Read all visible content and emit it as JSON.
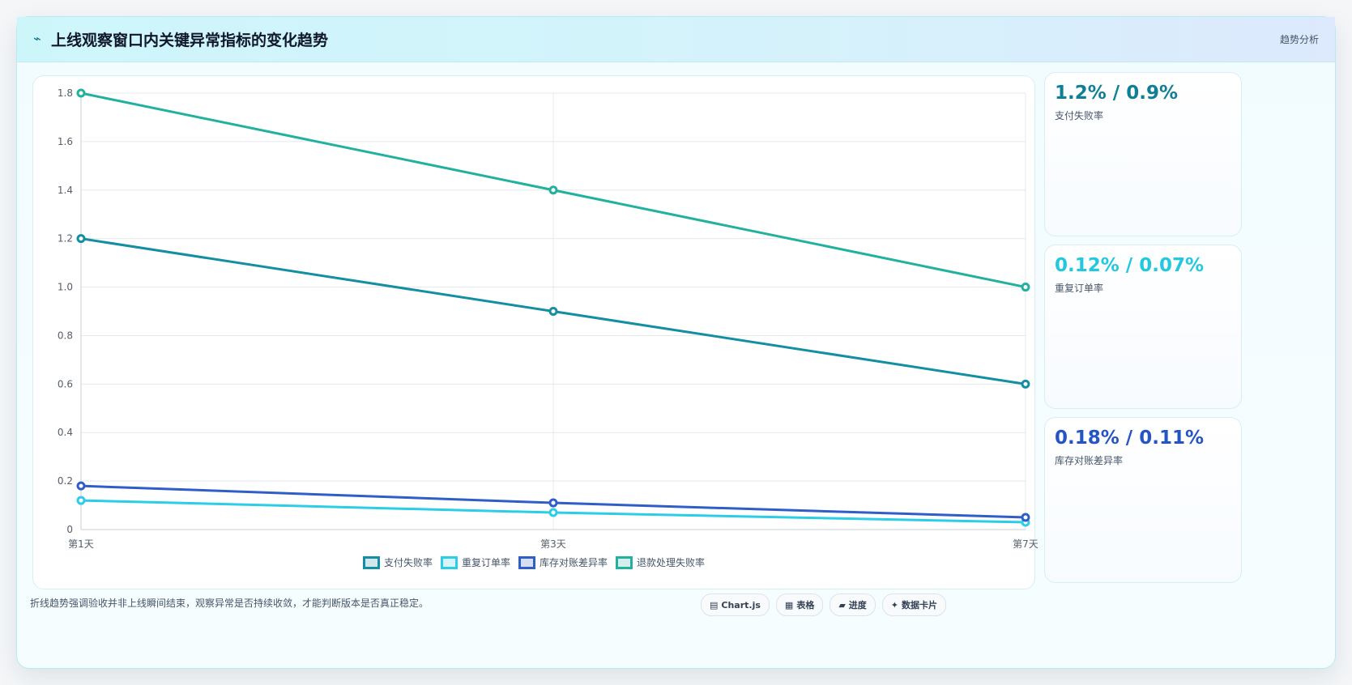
{
  "header": {
    "icon": "pulse-icon",
    "title": "上线观察窗口内关键异常指标的变化趋势",
    "tag": "趋势分析"
  },
  "chart_data": {
    "type": "line",
    "categories": [
      "第1天",
      "第3天",
      "第7天"
    ],
    "series": [
      {
        "name": "支付失败率",
        "values": [
          1.2,
          0.9,
          0.6
        ],
        "color": "#148ea3"
      },
      {
        "name": "重复订单率",
        "values": [
          0.12,
          0.07,
          0.03
        ],
        "color": "#2ccde6"
      },
      {
        "name": "库存对账差异率",
        "values": [
          0.18,
          0.11,
          0.05
        ],
        "color": "#2f5ec9"
      },
      {
        "name": "退款处理失败率",
        "values": [
          1.8,
          1.4,
          1.0
        ],
        "color": "#22b19e"
      }
    ],
    "ylim": [
      0,
      1.8
    ],
    "yticks": [
      "0",
      "0.2",
      "0.4",
      "0.6",
      "0.8",
      "1.0",
      "1.2",
      "1.4",
      "1.6",
      "1.8"
    ],
    "grid": true,
    "legend": "bottom"
  },
  "side_cards": [
    {
      "value": "1.2% / 0.9%",
      "label": "支付失败率",
      "color": "#0e7f96"
    },
    {
      "value": "0.12% / 0.07%",
      "label": "重复订单率",
      "color": "#22c8e0"
    },
    {
      "value": "0.18% / 0.11%",
      "label": "库存对账差异率",
      "color": "#2554c7"
    }
  ],
  "footer": {
    "note": "折线趋势强调验收并非上线瞬间结束，观察异常是否持续收敛，才能判断版本是否真正稳定。",
    "badges": [
      {
        "icon": "▤",
        "label": "Chart.js"
      },
      {
        "icon": "▦",
        "label": "表格"
      },
      {
        "icon": "▰",
        "label": "进度"
      },
      {
        "icon": "✦",
        "label": "数据卡片"
      }
    ]
  }
}
